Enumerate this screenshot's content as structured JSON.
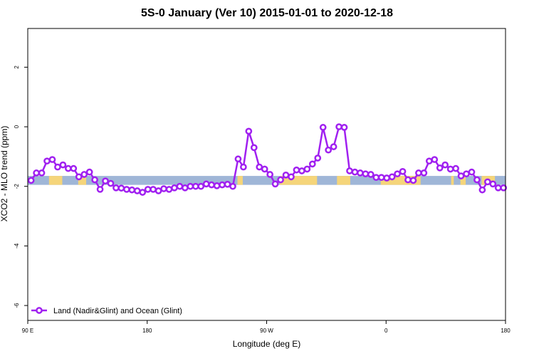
{
  "chart_data": {
    "type": "line",
    "title": "5S-0 January (Ver 10)   2015-01-01 to 2020-12-18",
    "xlabel": "Longitude (deg E)",
    "ylabel": "XCO2 - MLO trend (ppm)",
    "xlim": [
      90,
      450
    ],
    "ylim": [
      -6.5,
      3.3
    ],
    "x_ticks": [
      {
        "value": 90,
        "label": "90 E"
      },
      {
        "value": 180,
        "label": "180"
      },
      {
        "value": 270,
        "label": "90 W"
      },
      {
        "value": 360,
        "label": "0"
      },
      {
        "value": 450,
        "label": "180"
      }
    ],
    "y_ticks": [
      {
        "value": 2,
        "label": "2"
      },
      {
        "value": 0,
        "label": "0"
      },
      {
        "value": -2,
        "label": "-2"
      },
      {
        "value": -4,
        "label": "-4"
      },
      {
        "value": -6,
        "label": "-6"
      }
    ],
    "grid": false,
    "legend_position": "bottom-left",
    "colors": {
      "series": "#a020f0",
      "ocean_band": "#9fb6d7",
      "land_band": "#f5d57a"
    },
    "band": {
      "y_top": -1.65,
      "y_bottom": -1.95
    },
    "land_segments": [
      [
        106,
        116
      ],
      [
        128,
        134
      ],
      [
        248,
        252
      ],
      [
        280,
        308
      ],
      [
        323,
        333
      ],
      [
        356,
        386
      ],
      [
        409,
        411
      ],
      [
        416,
        420
      ],
      [
        432,
        442
      ]
    ],
    "series": [
      {
        "name": "Land (Nadir&Glint) and Ocean (Glint)",
        "x": [
          92.5,
          96.5,
          100.5,
          104.5,
          108.5,
          112.5,
          116.5,
          120.5,
          124.5,
          128.5,
          132.5,
          136.5,
          140.5,
          144.5,
          148.5,
          152.5,
          156.5,
          160.5,
          164.5,
          168.5,
          172.5,
          176.5,
          180.5,
          184.5,
          188.5,
          192.5,
          196.5,
          200.5,
          204.5,
          208.5,
          212.5,
          216.5,
          220.5,
          224.5,
          228.5,
          232.5,
          236.5,
          240.5,
          244.5,
          248.5,
          252.5,
          256.5,
          260.5,
          264.5,
          268.5,
          272.5,
          276.5,
          280.5,
          284.5,
          288.5,
          292.5,
          296.5,
          300.5,
          304.5,
          308.5,
          312.5,
          316.5,
          320.5,
          324.5,
          328.5,
          332.5,
          336.5,
          340.5,
          344.5,
          348.5,
          352.5,
          356.5,
          360.5,
          364.5,
          368.5,
          372.5,
          376.5,
          380.5,
          384.5,
          388.5,
          392.5,
          396.5,
          400.5,
          404.5,
          408.5,
          412.5,
          416.5,
          420.5,
          424.5,
          428.5,
          432.5,
          436.5,
          440.5,
          444.5,
          448.5
        ],
        "y": [
          -1.8,
          -1.55,
          -1.55,
          -1.15,
          -1.1,
          -1.35,
          -1.28,
          -1.4,
          -1.4,
          -1.68,
          -1.6,
          -1.52,
          -1.78,
          -2.1,
          -1.82,
          -1.9,
          -2.05,
          -2.06,
          -2.1,
          -2.12,
          -2.15,
          -2.2,
          -2.1,
          -2.1,
          -2.15,
          -2.08,
          -2.1,
          -2.05,
          -2.0,
          -2.05,
          -2.0,
          -2.0,
          -2.0,
          -1.92,
          -1.95,
          -1.98,
          -1.95,
          -1.93,
          -2.0,
          -1.08,
          -1.35,
          -0.15,
          -0.7,
          -1.35,
          -1.42,
          -1.6,
          -1.92,
          -1.78,
          -1.62,
          -1.68,
          -1.45,
          -1.48,
          -1.42,
          -1.25,
          -1.05,
          -0.02,
          -0.78,
          -0.67,
          0.0,
          -0.02,
          -1.48,
          -1.52,
          -1.55,
          -1.58,
          -1.6,
          -1.7,
          -1.7,
          -1.72,
          -1.68,
          -1.58,
          -1.5,
          -1.78,
          -1.8,
          -1.55,
          -1.55,
          -1.15,
          -1.1,
          -1.38,
          -1.28,
          -1.42,
          -1.4,
          -1.65,
          -1.58,
          -1.52,
          -1.78,
          -2.12,
          -1.85,
          -1.92,
          -2.05,
          -2.05
        ]
      }
    ]
  }
}
